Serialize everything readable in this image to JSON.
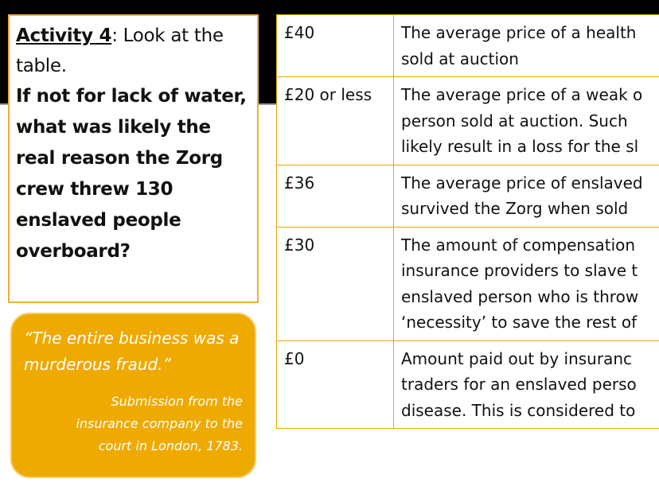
{
  "activity": {
    "label": "Activity 4",
    "instruction": ": Look at the table.",
    "question": "If not for lack of water, what was likely the real reason the Zorg crew threw 130 enslaved people overboard?"
  },
  "quote": {
    "text": "“The entire business was a murderous fraud.”",
    "source": "Submission from the insurance company to the court in London, 1783."
  },
  "table": {
    "rows": [
      [
        "£40",
        [
          "The average price of a health",
          "sold at auction"
        ]
      ],
      [
        "£20 or less",
        [
          "The average price of a weak o",
          "person sold at auction. Such",
          "likely result in a loss for the sl"
        ]
      ],
      [
        "£36",
        [
          "The average price of enslaved",
          "survived the Zorg when sold"
        ]
      ],
      [
        "£30",
        [
          "The amount of compensation",
          "insurance providers to slave t",
          "enslaved person who is throw",
          "‘necessity’ to save the rest of"
        ]
      ],
      [
        "£0",
        [
          "Amount paid out by insuranc",
          "traders for an enslaved perso",
          "disease. This is considered to"
        ]
      ]
    ]
  }
}
